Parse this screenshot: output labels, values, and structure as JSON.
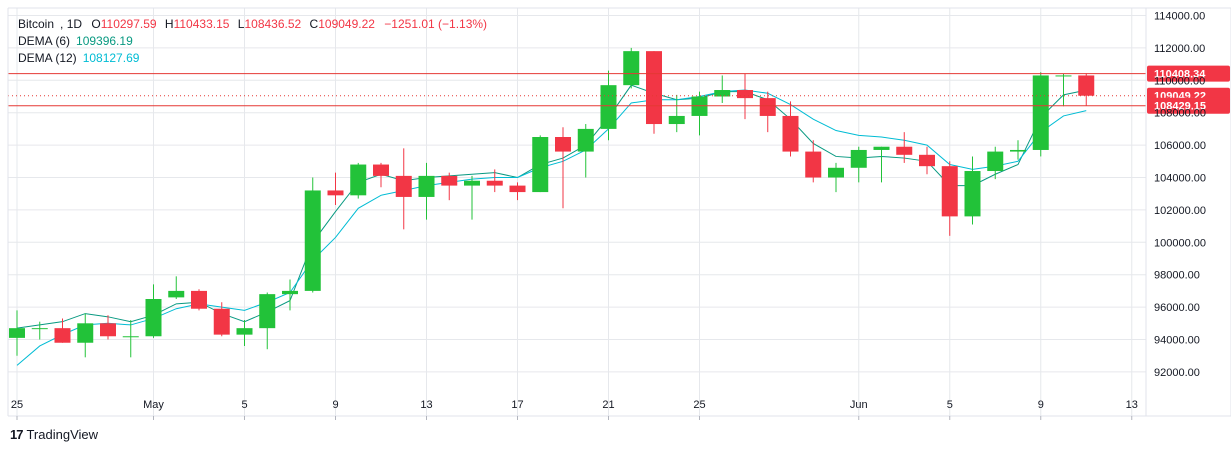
{
  "legend": {
    "symbol": "Bitcoin",
    "interval": "1D",
    "open_label": "O",
    "open": "110297.59",
    "high_label": "H",
    "high": "110433.15",
    "low_label": "L",
    "low": "108436.52",
    "close_label": "C",
    "close": "109049.22",
    "change": "−1251.01 (−1.13%)",
    "dema6_label": "DEMA (6)",
    "dema6_value": "109396.19",
    "dema12_label": "DEMA (12)",
    "dema12_value": "108127.69"
  },
  "brand": {
    "name": "TradingView",
    "logo": "17"
  },
  "colors": {
    "up": "#22c239",
    "down": "#f23645",
    "dema6": "#089981",
    "dema12": "#00bcd4",
    "grid": "#e6e8ec",
    "axis_text": "#131722",
    "hline": "#e53935"
  },
  "chart_data": {
    "type": "candlestick",
    "y_axis": {
      "min": 91000,
      "max": 114000,
      "ticks": [
        92000,
        94000,
        96000,
        98000,
        100000,
        102000,
        104000,
        106000,
        108000,
        110000,
        112000,
        114000
      ],
      "tick_labels": [
        "92000.00",
        "94000.00",
        "96000.00",
        "98000.00",
        "100000.00",
        "102000.00",
        "104000.00",
        "106000.00",
        "108000.00",
        "110000.00",
        "112000.00",
        "114000.00"
      ]
    },
    "x_axis": {
      "tick_labels": [
        {
          "date": "2025-04-25",
          "label": "25"
        },
        {
          "date": "2025-05-01",
          "label": "May"
        },
        {
          "date": "2025-05-05",
          "label": "5"
        },
        {
          "date": "2025-05-09",
          "label": "9"
        },
        {
          "date": "2025-05-13",
          "label": "13"
        },
        {
          "date": "2025-05-17",
          "label": "17"
        },
        {
          "date": "2025-05-21",
          "label": "21"
        },
        {
          "date": "2025-05-25",
          "label": "25"
        },
        {
          "date": "2025-06-01",
          "label": "Jun"
        },
        {
          "date": "2025-06-05",
          "label": "5"
        },
        {
          "date": "2025-06-09",
          "label": "9"
        },
        {
          "date": "2025-06-13",
          "label": "13"
        }
      ]
    },
    "candles": [
      {
        "date": "2025-04-25",
        "o": 94100,
        "h": 95800,
        "l": 93000,
        "c": 94700
      },
      {
        "date": "2025-04-26",
        "o": 94700,
        "h": 95100,
        "l": 94000,
        "c": 94700
      },
      {
        "date": "2025-04-27",
        "o": 94700,
        "h": 95300,
        "l": 93800,
        "c": 93800
      },
      {
        "date": "2025-04-28",
        "o": 93800,
        "h": 95600,
        "l": 92900,
        "c": 95000
      },
      {
        "date": "2025-04-29",
        "o": 95000,
        "h": 95500,
        "l": 94000,
        "c": 94200
      },
      {
        "date": "2025-04-30",
        "o": 94200,
        "h": 95200,
        "l": 92900,
        "c": 94200
      },
      {
        "date": "2025-05-01",
        "o": 94200,
        "h": 97400,
        "l": 94100,
        "c": 96500
      },
      {
        "date": "2025-05-02",
        "o": 96600,
        "h": 97900,
        "l": 96500,
        "c": 97000
      },
      {
        "date": "2025-05-03",
        "o": 97000,
        "h": 97100,
        "l": 95800,
        "c": 95900
      },
      {
        "date": "2025-05-04",
        "o": 95900,
        "h": 96300,
        "l": 94200,
        "c": 94300
      },
      {
        "date": "2025-05-05",
        "o": 94300,
        "h": 95200,
        "l": 93600,
        "c": 94700
      },
      {
        "date": "2025-05-06",
        "o": 94700,
        "h": 96900,
        "l": 93400,
        "c": 96800
      },
      {
        "date": "2025-05-07",
        "o": 96800,
        "h": 97700,
        "l": 95800,
        "c": 97000
      },
      {
        "date": "2025-05-08",
        "o": 97000,
        "h": 104000,
        "l": 96900,
        "c": 103200
      },
      {
        "date": "2025-05-09",
        "o": 103200,
        "h": 104300,
        "l": 102300,
        "c": 102900
      },
      {
        "date": "2025-05-10",
        "o": 102900,
        "h": 104900,
        "l": 102700,
        "c": 104800
      },
      {
        "date": "2025-05-11",
        "o": 104800,
        "h": 104900,
        "l": 103400,
        "c": 104100
      },
      {
        "date": "2025-05-12",
        "o": 104100,
        "h": 105800,
        "l": 100800,
        "c": 102800
      },
      {
        "date": "2025-05-13",
        "o": 102800,
        "h": 104900,
        "l": 101400,
        "c": 104100
      },
      {
        "date": "2025-05-14",
        "o": 104100,
        "h": 104300,
        "l": 102600,
        "c": 103500
      },
      {
        "date": "2025-05-15",
        "o": 103500,
        "h": 104100,
        "l": 101400,
        "c": 103800
      },
      {
        "date": "2025-05-16",
        "o": 103800,
        "h": 104500,
        "l": 103100,
        "c": 103500
      },
      {
        "date": "2025-05-17",
        "o": 103500,
        "h": 103700,
        "l": 102600,
        "c": 103100
      },
      {
        "date": "2025-05-18",
        "o": 103100,
        "h": 106600,
        "l": 103100,
        "c": 106500
      },
      {
        "date": "2025-05-19",
        "o": 106500,
        "h": 107100,
        "l": 102100,
        "c": 105600
      },
      {
        "date": "2025-05-20",
        "o": 105600,
        "h": 107300,
        "l": 104000,
        "c": 107000
      },
      {
        "date": "2025-05-21",
        "o": 107000,
        "h": 110600,
        "l": 106300,
        "c": 109700
      },
      {
        "date": "2025-05-22",
        "o": 109700,
        "h": 112000,
        "l": 109500,
        "c": 111800
      },
      {
        "date": "2025-05-23",
        "o": 111800,
        "h": 111800,
        "l": 106700,
        "c": 107300
      },
      {
        "date": "2025-05-24",
        "o": 107300,
        "h": 109100,
        "l": 106800,
        "c": 107800
      },
      {
        "date": "2025-05-25",
        "o": 107800,
        "h": 109300,
        "l": 106600,
        "c": 109000
      },
      {
        "date": "2025-05-26",
        "o": 109000,
        "h": 110300,
        "l": 108600,
        "c": 109400
      },
      {
        "date": "2025-05-27",
        "o": 109400,
        "h": 110400,
        "l": 107600,
        "c": 108900
      },
      {
        "date": "2025-05-28",
        "o": 108900,
        "h": 109300,
        "l": 106800,
        "c": 107800
      },
      {
        "date": "2025-05-29",
        "o": 107800,
        "h": 108700,
        "l": 105300,
        "c": 105600
      },
      {
        "date": "2025-05-30",
        "o": 105600,
        "h": 106300,
        "l": 103700,
        "c": 104000
      },
      {
        "date": "2025-05-31",
        "o": 104000,
        "h": 104900,
        "l": 103100,
        "c": 104600
      },
      {
        "date": "2025-06-01",
        "o": 104600,
        "h": 105900,
        "l": 103700,
        "c": 105700
      },
      {
        "date": "2025-06-02",
        "o": 105700,
        "h": 105900,
        "l": 103700,
        "c": 105900
      },
      {
        "date": "2025-06-03",
        "o": 105900,
        "h": 106800,
        "l": 104900,
        "c": 105400
      },
      {
        "date": "2025-06-04",
        "o": 105400,
        "h": 105900,
        "l": 104200,
        "c": 104700
      },
      {
        "date": "2025-06-05",
        "o": 104700,
        "h": 105000,
        "l": 100400,
        "c": 101600
      },
      {
        "date": "2025-06-06",
        "o": 101600,
        "h": 105300,
        "l": 101100,
        "c": 104400
      },
      {
        "date": "2025-06-07",
        "o": 104400,
        "h": 105900,
        "l": 103900,
        "c": 105600
      },
      {
        "date": "2025-06-08",
        "o": 105600,
        "h": 106300,
        "l": 105100,
        "c": 105700
      },
      {
        "date": "2025-06-09",
        "o": 105700,
        "h": 110500,
        "l": 105300,
        "c": 110300
      },
      {
        "date": "2025-06-10",
        "o": 110300,
        "h": 110400,
        "l": 108400,
        "c": 110300
      },
      {
        "date": "2025-06-11",
        "o": 110300,
        "h": 110433.15,
        "l": 108436.52,
        "c": 109049.22
      }
    ],
    "series": [
      {
        "name": "DEMA (6)",
        "values": [
          94700,
          94900,
          95100,
          95600,
          95400,
          95100,
          95500,
          96200,
          96300,
          95600,
          95100,
          95700,
          96400,
          100000,
          101900,
          103700,
          104200,
          103800,
          104000,
          104100,
          104200,
          104300,
          104000,
          104800,
          105200,
          106000,
          107700,
          109700,
          109200,
          108800,
          108900,
          109300,
          109300,
          108800,
          107600,
          106100,
          105300,
          105200,
          105300,
          105200,
          105000,
          103500,
          103500,
          104200,
          104800,
          107700,
          109100,
          109396.19
        ]
      },
      {
        "name": "DEMA (12)",
        "values": [
          92400,
          93600,
          94300,
          94900,
          95000,
          94900,
          95300,
          95900,
          96200,
          96000,
          95800,
          96300,
          96900,
          98900,
          100300,
          102100,
          102900,
          103200,
          103500,
          103700,
          103900,
          104000,
          104000,
          104600,
          105000,
          105700,
          107000,
          108600,
          108800,
          108800,
          109000,
          109300,
          109400,
          109200,
          108500,
          107600,
          106900,
          106600,
          106500,
          106300,
          106000,
          104800,
          104500,
          104700,
          105000,
          106800,
          107800,
          108127.69
        ]
      }
    ],
    "horizontal_lines": [
      {
        "value": 110408.34,
        "label": "110408.34",
        "style": "solid"
      },
      {
        "value": 109049.22,
        "label": "109049.22",
        "style": "dotted"
      },
      {
        "value": 108429.15,
        "label": "108429.15",
        "style": "solid"
      }
    ],
    "grid": true,
    "legend_position": "top-left"
  }
}
